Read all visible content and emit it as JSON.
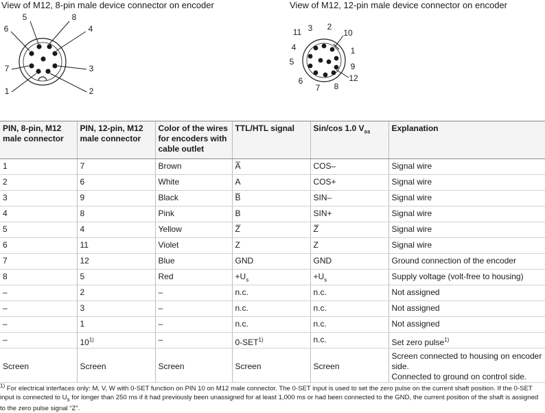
{
  "diagrams": [
    {
      "title": "View of M12, 8-pin male device connector on encoder",
      "pins": [
        "5",
        "8",
        "6",
        "4",
        "7",
        "3",
        "1",
        "2"
      ]
    },
    {
      "title": "View of M12, 12-pin male device connector on encoder",
      "pins": [
        "11",
        "3",
        "2",
        "10",
        "4",
        "1",
        "5",
        "9",
        "12",
        "6",
        "7",
        "8"
      ]
    }
  ],
  "table": {
    "header": [
      "PIN, 8-pin, M12 male connector",
      "PIN, 12-pin, M12 male connector",
      "Color of the wires for encoders with cable outlet",
      "TTL/HTL signal",
      {
        "text": "Sin/cos 1.0 V",
        "sub": "ss"
      },
      "Explanation"
    ],
    "rows": [
      [
        "1",
        "7",
        "Brown",
        "A̅",
        "COS–",
        "Signal wire"
      ],
      [
        "2",
        "6",
        "White",
        "A",
        "COS+",
        "Signal wire"
      ],
      [
        "3",
        "9",
        "Black",
        "B̅",
        "SIN–",
        "Signal wire"
      ],
      [
        "4",
        "8",
        "Pink",
        "B",
        "SIN+",
        "Signal wire"
      ],
      [
        "5",
        "4",
        "Yellow",
        "Z̅",
        "Z̅",
        "Signal wire"
      ],
      [
        "6",
        "11",
        "Violet",
        "Z",
        "Z",
        "Signal wire"
      ],
      [
        "7",
        "12",
        "Blue",
        "GND",
        "GND",
        "Ground connection of the encoder"
      ],
      [
        "8",
        "5",
        "Red",
        {
          "text": "+U",
          "sub": "s"
        },
        {
          "text": "+U",
          "sub": "s"
        },
        "Supply voltage (volt-free to housing)"
      ],
      [
        "–",
        "2",
        "–",
        "n.c.",
        "n.c.",
        "Not assigned"
      ],
      [
        "–",
        "3",
        "–",
        "n.c.",
        "n.c.",
        "Not assigned"
      ],
      [
        "–",
        "1",
        "–",
        "n.c.",
        "n.c.",
        "Not assigned"
      ],
      [
        "–",
        {
          "text": "10",
          "sup": "1)"
        },
        "–",
        {
          "text": "0-SET",
          "sup": "1)"
        },
        "n.c.",
        {
          "text": "Set zero pulse",
          "sup": "1)"
        }
      ],
      [
        "Screen",
        "Screen",
        "Screen",
        "Screen",
        "Screen",
        [
          "Screen connected to housing on encoder side.",
          "Connected to ground on control side."
        ]
      ]
    ]
  },
  "footnote": {
    "mark": "1)",
    "text_before": "For electrical interfaces only: M, V, W with 0-SET function on PIN 10 on M12 male connector. The 0-SET input is used to set the zero pulse on the current shaft position. If the 0-SET input is connected to U",
    "sub": "s",
    "text_after": " for longer than 250 ms if it had previously been unassigned for at least 1,000 ms or had been connected to the GND, the current position of the shaft is assigned to the zero pulse signal “Z”."
  }
}
